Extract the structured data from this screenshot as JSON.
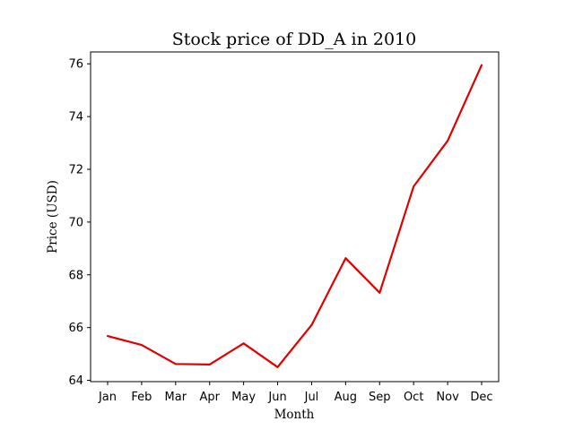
{
  "chart_data": {
    "type": "line",
    "title": "Stock price of DD_A in 2010",
    "xlabel": "Month",
    "ylabel": "Price (USD)",
    "categories": [
      "Jan",
      "Feb",
      "Mar",
      "Apr",
      "May",
      "Jun",
      "Jul",
      "Aug",
      "Sep",
      "Oct",
      "Nov",
      "Dec"
    ],
    "series": [
      {
        "color": "#e00000",
        "values": [
          65.68,
          65.34,
          64.62,
          64.6,
          65.4,
          64.5,
          66.1,
          68.63,
          67.32,
          71.35,
          73.08,
          75.95
        ]
      }
    ],
    "ylim": [
      63.95,
      76.45
    ],
    "yticks": [
      64,
      66,
      68,
      70,
      72,
      74,
      76
    ],
    "ytick_labels": [
      "64",
      "66",
      "68",
      "70",
      "72",
      "74",
      "76"
    ],
    "grid": false,
    "legend": "none"
  }
}
